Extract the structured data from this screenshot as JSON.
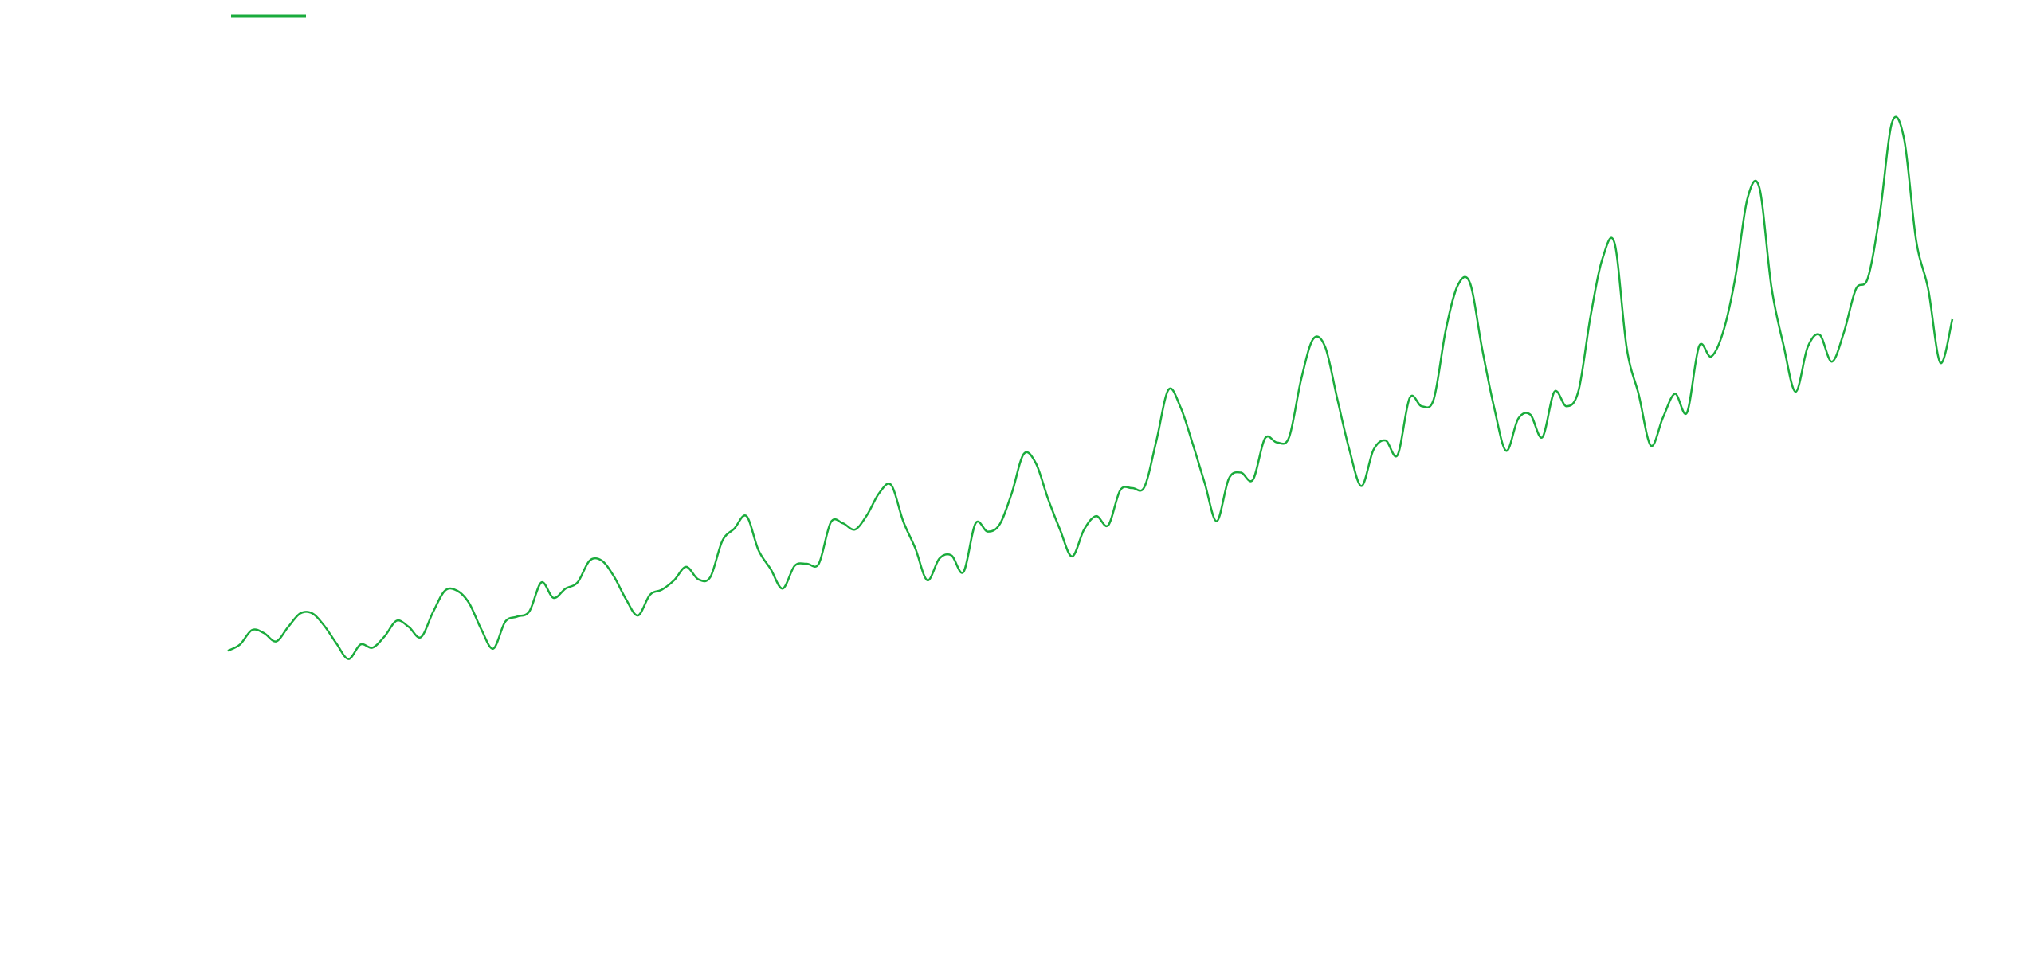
{
  "colors": {
    "background": "#ffffff",
    "series": "#1aab3c"
  },
  "chart_data": {
    "type": "line",
    "title": "",
    "xlabel": "",
    "ylabel": "",
    "grid": false,
    "axes_visible": false,
    "legend": "top-left",
    "xlim": [
      0,
      143
    ],
    "ylim": [
      53,
      651
    ],
    "series": [
      {
        "name": "",
        "color": "#1aab3c",
        "x": [
          0,
          1,
          2,
          3,
          4,
          5,
          6,
          7,
          8,
          9,
          10,
          11,
          12,
          13,
          14,
          15,
          16,
          17,
          18,
          19,
          20,
          21,
          22,
          23,
          24,
          25,
          26,
          27,
          28,
          29,
          30,
          31,
          32,
          33,
          34,
          35,
          36,
          37,
          38,
          39,
          40,
          41,
          42,
          43,
          44,
          45,
          46,
          47,
          48,
          49,
          50,
          51,
          52,
          53,
          54,
          55,
          56,
          57,
          58,
          59,
          60,
          61,
          62,
          63,
          64,
          65,
          66,
          67,
          68,
          69,
          70,
          71,
          72,
          73,
          74,
          75,
          76,
          77,
          78,
          79,
          80,
          81,
          82,
          83,
          84,
          85,
          86,
          87,
          88,
          89,
          90,
          91,
          92,
          93,
          94,
          95,
          96,
          97,
          98,
          99,
          100,
          101,
          102,
          103,
          104,
          105,
          106,
          107,
          108,
          109,
          110,
          111,
          112,
          113,
          114,
          115,
          116,
          117,
          118,
          119,
          120,
          121,
          122,
          123,
          124,
          125,
          126,
          127,
          128,
          129,
          130,
          131,
          132,
          133,
          134,
          135,
          136,
          137,
          138,
          139,
          140,
          141,
          142,
          143
        ],
        "values": [
          112,
          118,
          132,
          129,
          121,
          135,
          148,
          148,
          136,
          119,
          104,
          118,
          115,
          126,
          141,
          135,
          125,
          149,
          170,
          170,
          158,
          133,
          114,
          140,
          145,
          150,
          178,
          163,
          172,
          178,
          199,
          199,
          184,
          162,
          146,
          166,
          171,
          180,
          193,
          181,
          183,
          218,
          230,
          242,
          209,
          191,
          172,
          194,
          196,
          196,
          236,
          235,
          229,
          243,
          264,
          272,
          237,
          211,
          180,
          201,
          204,
          188,
          235,
          227,
          234,
          264,
          302,
          293,
          259,
          229,
          203,
          229,
          242,
          233,
          267,
          269,
          270,
          315,
          364,
          347,
          312,
          274,
          237,
          278,
          284,
          277,
          317,
          313,
          318,
          374,
          413,
          405,
          355,
          306,
          271,
          306,
          315,
          301,
          356,
          348,
          355,
          422,
          465,
          467,
          404,
          347,
          305,
          336,
          340,
          318,
          362,
          348,
          363,
          435,
          491,
          505,
          404,
          359,
          310,
          337,
          360,
          342,
          406,
          396,
          420,
          472,
          548,
          559,
          463,
          407,
          362,
          405,
          417,
          391,
          419,
          461,
          472,
          535,
          622,
          606,
          508,
          461,
          390,
          432
        ]
      }
    ]
  }
}
